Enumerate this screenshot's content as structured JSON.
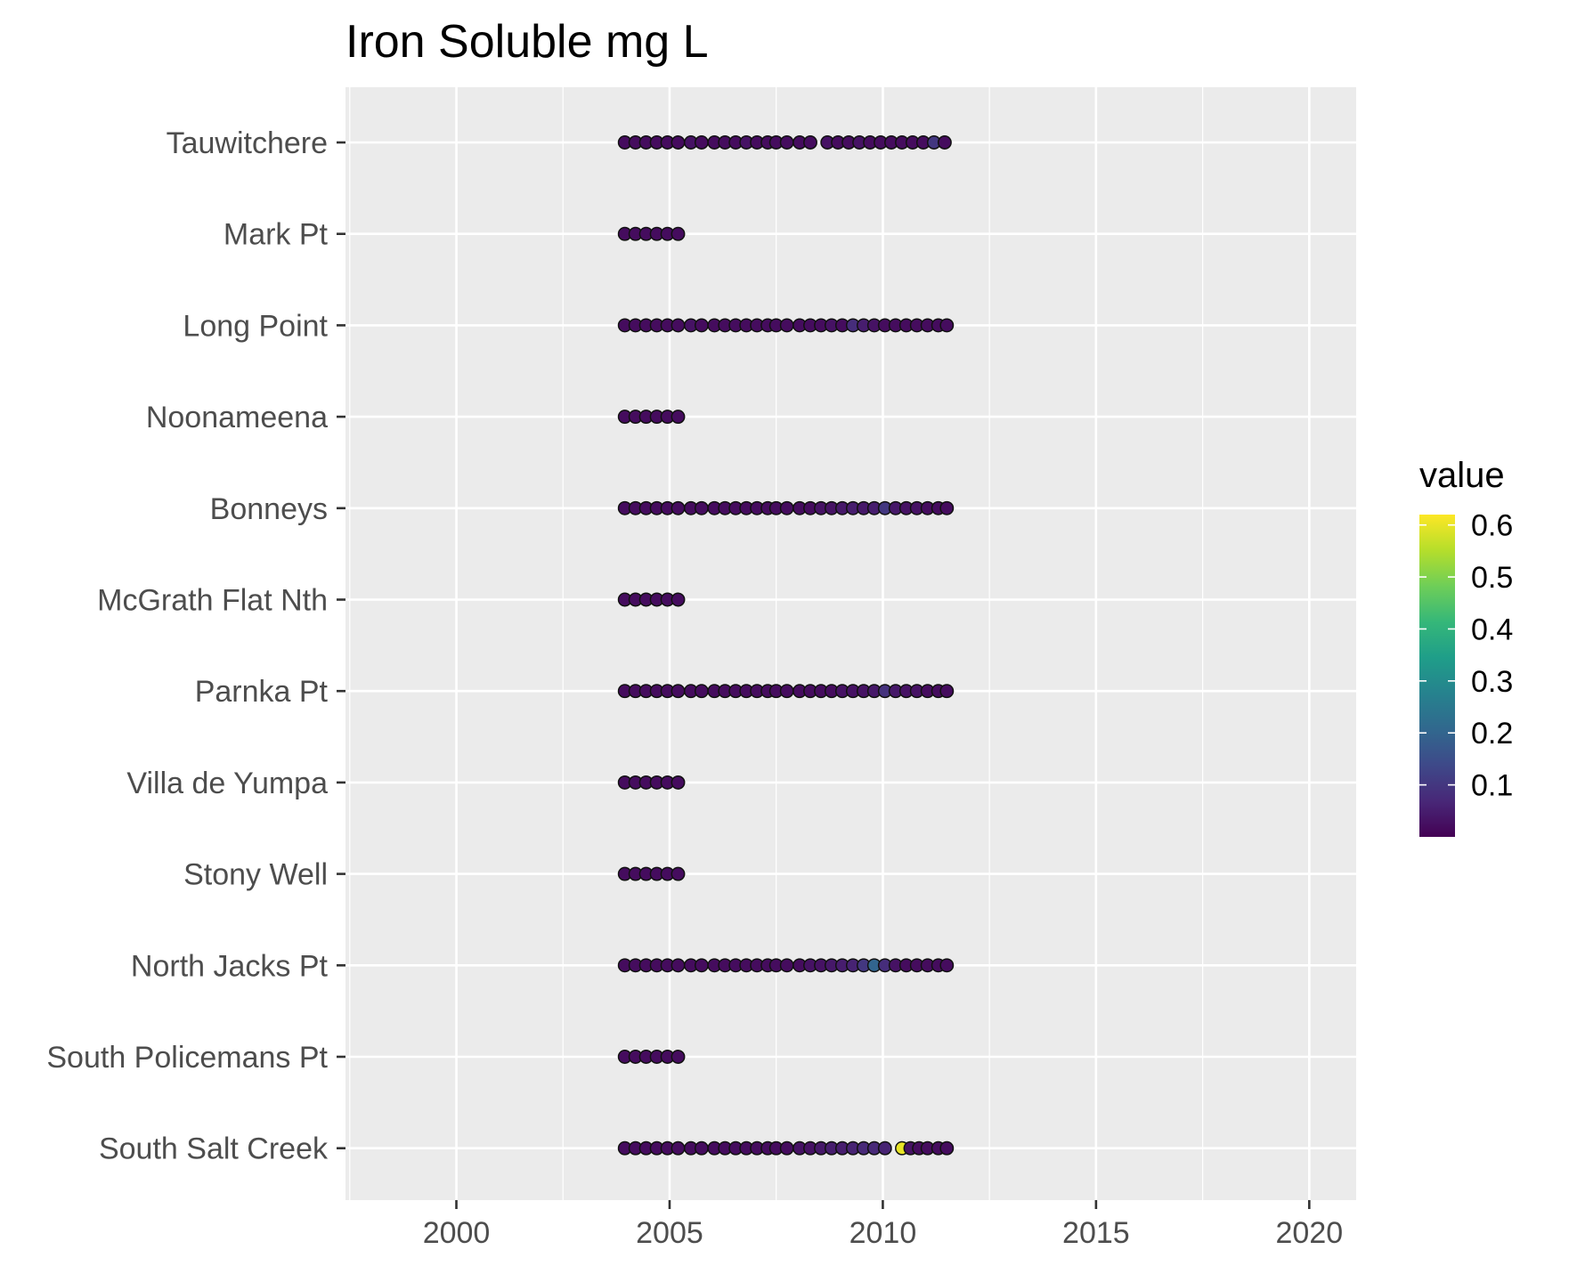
{
  "chart_data": {
    "type": "scatter",
    "title": "Iron Soluble mg L",
    "xlabel": "",
    "ylabel": "",
    "xlim": [
      1997.4,
      2021.1
    ],
    "x_ticks": [
      2000,
      2005,
      2010,
      2015,
      2020
    ],
    "x_tick_labels": [
      "2000",
      "2005",
      "2010",
      "2015",
      "2020"
    ],
    "categories": [
      "Tauwitchere",
      "Mark Pt",
      "Long Point",
      "Noonameena",
      "Bonneys",
      "McGrath Flat Nth",
      "Parnka Pt",
      "Villa de Yumpa",
      "Stony Well",
      "North Jacks Pt",
      "South Policemans Pt",
      "South Salt Creek"
    ],
    "grid": true,
    "legend": {
      "title": "value",
      "position": "right",
      "type": "colorbar",
      "colormap": "viridis",
      "range": [
        0.0,
        0.62
      ],
      "ticks": [
        0.1,
        0.2,
        0.3,
        0.4,
        0.5,
        0.6
      ],
      "tick_labels": [
        "0.1",
        "0.2",
        "0.3",
        "0.4",
        "0.5",
        "0.6"
      ]
    },
    "colors": {
      "panel_bg": "#ebebeb",
      "grid": "#ffffff",
      "point_edge": "#111111",
      "axis_text": "#4d4d4d",
      "title": "#000000"
    },
    "series": [
      {
        "category": "Tauwitchere",
        "x": [
          2003.95,
          2004.2,
          2004.45,
          2004.7,
          2004.95,
          2005.2,
          2005.5,
          2005.75,
          2006.05,
          2006.3,
          2006.55,
          2006.8,
          2007.05,
          2007.3,
          2007.5,
          2007.75,
          2008.05,
          2008.3,
          2008.7,
          2008.95,
          2009.2,
          2009.45,
          2009.7,
          2009.95,
          2010.2,
          2010.45,
          2010.7,
          2010.95,
          2011.2,
          2011.45
        ],
        "value": [
          0.02,
          0.02,
          0.02,
          0.02,
          0.02,
          0.02,
          0.03,
          0.02,
          0.02,
          0.02,
          0.02,
          0.03,
          0.02,
          0.02,
          0.02,
          0.02,
          0.02,
          0.02,
          0.03,
          0.02,
          0.02,
          0.03,
          0.02,
          0.02,
          0.02,
          0.02,
          0.02,
          0.02,
          0.1,
          0.02
        ]
      },
      {
        "category": "Mark Pt",
        "x": [
          2003.95,
          2004.2,
          2004.45,
          2004.7,
          2004.95,
          2005.2
        ],
        "value": [
          0.02,
          0.02,
          0.02,
          0.02,
          0.02,
          0.02
        ]
      },
      {
        "category": "Long Point",
        "x": [
          2003.95,
          2004.2,
          2004.45,
          2004.7,
          2004.95,
          2005.2,
          2005.5,
          2005.75,
          2006.05,
          2006.3,
          2006.55,
          2006.8,
          2007.05,
          2007.3,
          2007.5,
          2007.75,
          2008.05,
          2008.3,
          2008.55,
          2008.8,
          2009.05,
          2009.3,
          2009.55,
          2009.8,
          2010.05,
          2010.3,
          2010.55,
          2010.8,
          2011.05,
          2011.3,
          2011.5
        ],
        "value": [
          0.02,
          0.02,
          0.02,
          0.02,
          0.02,
          0.02,
          0.03,
          0.02,
          0.02,
          0.02,
          0.02,
          0.02,
          0.02,
          0.02,
          0.02,
          0.02,
          0.02,
          0.02,
          0.02,
          0.03,
          0.02,
          0.08,
          0.05,
          0.03,
          0.02,
          0.02,
          0.02,
          0.02,
          0.02,
          0.02,
          0.02
        ]
      },
      {
        "category": "Noonameena",
        "x": [
          2003.95,
          2004.2,
          2004.45,
          2004.7,
          2004.95,
          2005.2
        ],
        "value": [
          0.02,
          0.02,
          0.02,
          0.02,
          0.02,
          0.02
        ]
      },
      {
        "category": "Bonneys",
        "x": [
          2003.95,
          2004.2,
          2004.45,
          2004.7,
          2004.95,
          2005.2,
          2005.5,
          2005.75,
          2006.05,
          2006.3,
          2006.55,
          2006.8,
          2007.05,
          2007.3,
          2007.5,
          2007.75,
          2008.05,
          2008.3,
          2008.55,
          2008.8,
          2009.05,
          2009.3,
          2009.55,
          2009.8,
          2010.05,
          2010.3,
          2010.55,
          2010.8,
          2011.05,
          2011.3,
          2011.5
        ],
        "value": [
          0.02,
          0.02,
          0.02,
          0.02,
          0.02,
          0.02,
          0.02,
          0.02,
          0.02,
          0.02,
          0.02,
          0.02,
          0.02,
          0.02,
          0.02,
          0.02,
          0.02,
          0.02,
          0.03,
          0.03,
          0.04,
          0.05,
          0.04,
          0.05,
          0.1,
          0.04,
          0.03,
          0.03,
          0.02,
          0.02,
          0.02
        ]
      },
      {
        "category": "McGrath Flat Nth",
        "x": [
          2003.95,
          2004.2,
          2004.45,
          2004.7,
          2004.95,
          2005.2
        ],
        "value": [
          0.02,
          0.02,
          0.02,
          0.02,
          0.02,
          0.02
        ]
      },
      {
        "category": "Parnka Pt",
        "x": [
          2003.95,
          2004.2,
          2004.45,
          2004.7,
          2004.95,
          2005.2,
          2005.5,
          2005.75,
          2006.05,
          2006.3,
          2006.55,
          2006.8,
          2007.05,
          2007.3,
          2007.5,
          2007.75,
          2008.05,
          2008.3,
          2008.55,
          2008.8,
          2009.05,
          2009.3,
          2009.55,
          2009.8,
          2010.05,
          2010.3,
          2010.55,
          2010.8,
          2011.05,
          2011.3,
          2011.5
        ],
        "value": [
          0.02,
          0.02,
          0.02,
          0.02,
          0.02,
          0.02,
          0.02,
          0.02,
          0.02,
          0.02,
          0.02,
          0.02,
          0.02,
          0.02,
          0.02,
          0.02,
          0.02,
          0.02,
          0.02,
          0.02,
          0.03,
          0.03,
          0.03,
          0.04,
          0.09,
          0.04,
          0.03,
          0.03,
          0.02,
          0.02,
          0.02
        ]
      },
      {
        "category": "Villa de Yumpa",
        "x": [
          2003.95,
          2004.2,
          2004.45,
          2004.7,
          2004.95,
          2005.2
        ],
        "value": [
          0.02,
          0.02,
          0.02,
          0.02,
          0.02,
          0.02
        ]
      },
      {
        "category": "Stony Well",
        "x": [
          2003.95,
          2004.2,
          2004.45,
          2004.7,
          2004.95,
          2005.2
        ],
        "value": [
          0.02,
          0.02,
          0.02,
          0.02,
          0.02,
          0.02
        ]
      },
      {
        "category": "North Jacks Pt",
        "x": [
          2003.95,
          2004.2,
          2004.45,
          2004.7,
          2004.95,
          2005.2,
          2005.5,
          2005.75,
          2006.05,
          2006.3,
          2006.55,
          2006.8,
          2007.05,
          2007.3,
          2007.5,
          2007.75,
          2008.05,
          2008.3,
          2008.55,
          2008.8,
          2009.05,
          2009.3,
          2009.55,
          2009.8,
          2010.05,
          2010.3,
          2010.55,
          2010.8,
          2011.05,
          2011.3,
          2011.5
        ],
        "value": [
          0.02,
          0.02,
          0.02,
          0.02,
          0.02,
          0.02,
          0.02,
          0.02,
          0.02,
          0.02,
          0.02,
          0.02,
          0.02,
          0.02,
          0.02,
          0.02,
          0.02,
          0.03,
          0.03,
          0.04,
          0.05,
          0.06,
          0.1,
          0.2,
          0.08,
          0.03,
          0.02,
          0.02,
          0.02,
          0.02,
          0.02
        ]
      },
      {
        "category": "South Policemans Pt",
        "x": [
          2003.95,
          2004.2,
          2004.45,
          2004.7,
          2004.95,
          2005.2
        ],
        "value": [
          0.02,
          0.02,
          0.02,
          0.02,
          0.02,
          0.02
        ]
      },
      {
        "category": "South Salt Creek",
        "x": [
          2003.95,
          2004.2,
          2004.45,
          2004.7,
          2004.95,
          2005.2,
          2005.5,
          2005.75,
          2006.05,
          2006.3,
          2006.55,
          2006.8,
          2007.05,
          2007.3,
          2007.5,
          2007.75,
          2008.05,
          2008.3,
          2008.55,
          2008.8,
          2009.05,
          2009.3,
          2009.55,
          2009.8,
          2010.05,
          2010.45,
          2010.65,
          2010.85,
          2011.05,
          2011.3,
          2011.5
        ],
        "value": [
          0.02,
          0.02,
          0.02,
          0.02,
          0.02,
          0.02,
          0.02,
          0.02,
          0.02,
          0.02,
          0.02,
          0.02,
          0.02,
          0.02,
          0.02,
          0.02,
          0.03,
          0.03,
          0.04,
          0.05,
          0.05,
          0.06,
          0.07,
          0.07,
          0.06,
          0.6,
          0.03,
          0.02,
          0.02,
          0.02,
          0.02
        ]
      }
    ]
  }
}
